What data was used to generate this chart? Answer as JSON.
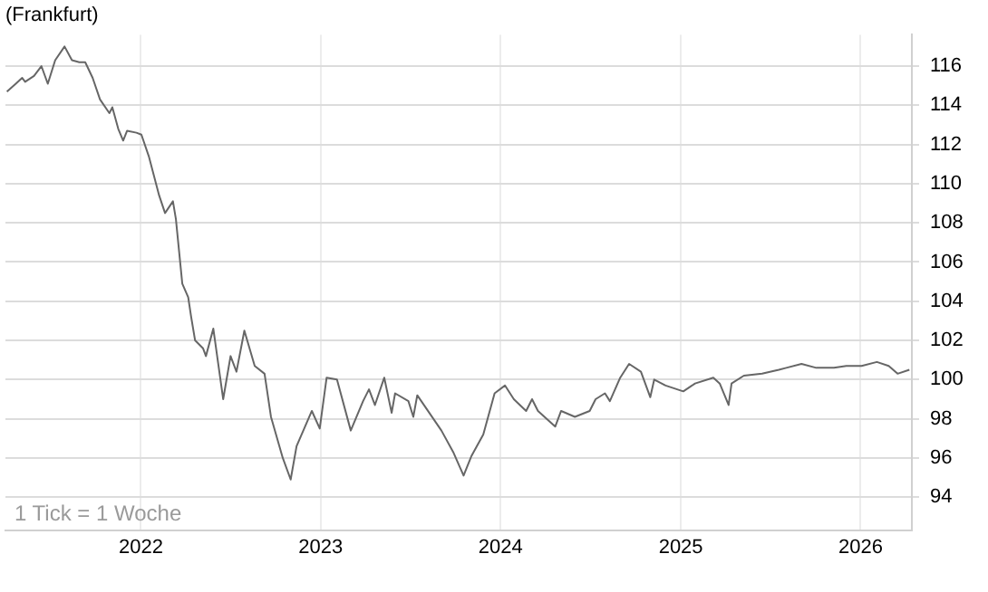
{
  "chart_data": {
    "type": "line",
    "title": "(Frankfurt)",
    "annotations": [
      "1 Tick = 1 Woche"
    ],
    "x": [
      "2021-04-04",
      "2021-04-22",
      "2021-05-05",
      "2021-05-11",
      "2021-05-29",
      "2021-06-13",
      "2021-06-26",
      "2021-07-11",
      "2021-07-30",
      "2021-08-14",
      "2021-08-29",
      "2021-09-10",
      "2021-09-25",
      "2021-10-10",
      "2021-10-29",
      "2021-11-04",
      "2021-11-16",
      "2021-11-26",
      "2021-12-04",
      "2021-12-23",
      "2022-01-02",
      "2022-01-17",
      "2022-02-07",
      "2022-02-19",
      "2022-03-07",
      "2022-03-13",
      "2022-03-26",
      "2022-04-07",
      "2022-04-13",
      "2022-04-21",
      "2022-05-07",
      "2022-05-13",
      "2022-05-28",
      "2022-06-17",
      "2022-07-02",
      "2022-07-14",
      "2022-07-30",
      "2022-08-20",
      "2022-09-09",
      "2022-09-22",
      "2022-10-16",
      "2022-11-01",
      "2022-11-13",
      "2022-12-14",
      "2022-12-30",
      "2023-01-13",
      "2023-02-03",
      "2023-03-03",
      "2023-03-28",
      "2023-04-09",
      "2023-04-21",
      "2023-05-10",
      "2023-05-25",
      "2023-06-01",
      "2023-06-28",
      "2023-07-08",
      "2023-07-16",
      "2023-09-03",
      "2023-09-27",
      "2023-10-18",
      "2023-11-03",
      "2023-11-27",
      "2023-12-20",
      "2024-01-10",
      "2024-01-28",
      "2024-02-22",
      "2024-03-05",
      "2024-03-17",
      "2024-04-21",
      "2024-05-03",
      "2024-05-31",
      "2024-06-30",
      "2024-07-12",
      "2024-07-31",
      "2024-08-10",
      "2024-08-31",
      "2024-09-18",
      "2024-10-12",
      "2024-10-31",
      "2024-11-08",
      "2024-12-01",
      "2025-01-06",
      "2025-01-30",
      "2025-03-08",
      "2025-03-21",
      "2025-04-08",
      "2025-04-14",
      "2025-05-09",
      "2025-06-15",
      "2025-07-19",
      "2025-08-03",
      "2025-09-03",
      "2025-10-03",
      "2025-11-08",
      "2025-12-03",
      "2026-01-03",
      "2026-02-03",
      "2026-02-27",
      "2026-03-17",
      "2026-04-10"
    ],
    "series": [
      {
        "color": "#666666",
        "values": [
          114.7,
          115.1,
          115.4,
          115.2,
          115.5,
          116.0,
          115.1,
          116.3,
          117.0,
          116.3,
          116.2,
          116.2,
          115.4,
          114.3,
          113.6,
          113.9,
          112.8,
          112.2,
          112.7,
          112.6,
          112.5,
          111.4,
          109.4,
          108.5,
          109.1,
          108.2,
          104.9,
          104.2,
          103.2,
          102.0,
          101.6,
          101.2,
          102.6,
          99.0,
          101.2,
          100.4,
          102.5,
          100.7,
          100.3,
          98.1,
          96.0,
          94.9,
          96.6,
          98.4,
          97.5,
          100.1,
          100.0,
          97.4,
          98.9,
          99.5,
          98.7,
          100.1,
          98.3,
          99.3,
          98.9,
          98.1,
          99.2,
          97.4,
          96.3,
          95.1,
          96.1,
          97.2,
          99.3,
          99.7,
          99.0,
          98.4,
          99.0,
          98.4,
          97.6,
          98.4,
          98.1,
          98.4,
          99.0,
          99.3,
          98.9,
          100.1,
          100.8,
          100.4,
          99.1,
          100.0,
          99.7,
          99.4,
          99.8,
          100.1,
          99.8,
          98.7,
          99.8,
          100.2,
          100.3,
          100.5,
          100.6,
          100.8,
          100.6,
          100.6,
          100.7,
          100.7,
          100.9,
          100.7,
          100.3,
          100.5
        ]
      }
    ],
    "xlim": [
      "2021-04-01",
      "2026-04-15"
    ],
    "xticks": [
      "2022",
      "2023",
      "2024",
      "2025",
      "2026"
    ],
    "ylim": [
      92.3,
      117.6
    ],
    "yticks": [
      94,
      96,
      98,
      100,
      102,
      104,
      106,
      108,
      110,
      112,
      114,
      116
    ],
    "grid": true,
    "legend": false,
    "marker": "none",
    "line_style": "solid"
  }
}
